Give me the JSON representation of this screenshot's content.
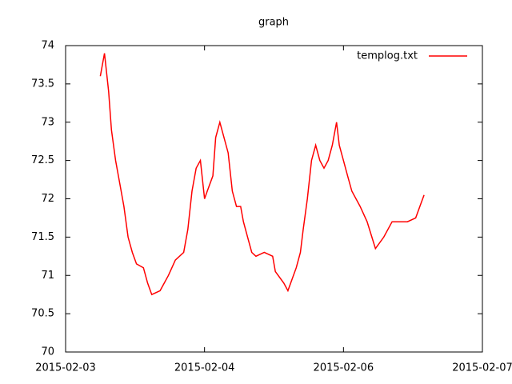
{
  "chart_data": {
    "type": "line",
    "title": "graph",
    "x": [
      0.25,
      0.28,
      0.31,
      0.33,
      0.36,
      0.39,
      0.42,
      0.45,
      0.48,
      0.51,
      0.56,
      0.59,
      0.62,
      0.68,
      0.74,
      0.79,
      0.85,
      0.88,
      0.91,
      0.94,
      0.97,
      1.0,
      1.02,
      1.06,
      1.08,
      1.11,
      1.14,
      1.17,
      1.2,
      1.23,
      1.26,
      1.28,
      1.31,
      1.34,
      1.37,
      1.43,
      1.49,
      1.51,
      1.57,
      1.6,
      1.63,
      1.66,
      1.69,
      1.71,
      1.74,
      1.77,
      1.8,
      1.83,
      1.86,
      1.89,
      1.92,
      1.95,
      1.97,
      2.0,
      2.03,
      2.06,
      2.12,
      2.17,
      2.23,
      2.29,
      2.35,
      2.41,
      2.46,
      2.52,
      2.55,
      2.58
    ],
    "series": [
      {
        "name": "templog.txt",
        "color": "#ff0000",
        "values": [
          73.6,
          73.9,
          73.4,
          72.9,
          72.5,
          72.2,
          71.9,
          71.5,
          71.3,
          71.15,
          71.1,
          70.9,
          70.75,
          70.8,
          71.0,
          71.2,
          71.3,
          71.6,
          72.1,
          72.4,
          72.5,
          72.0,
          72.1,
          72.3,
          72.8,
          73.0,
          72.8,
          72.6,
          72.1,
          71.9,
          71.9,
          71.7,
          71.5,
          71.3,
          71.25,
          71.3,
          71.25,
          71.05,
          70.9,
          70.8,
          70.95,
          71.1,
          71.3,
          71.6,
          72.0,
          72.5,
          72.7,
          72.5,
          72.4,
          72.5,
          72.7,
          73.0,
          72.7,
          72.5,
          72.3,
          72.1,
          71.9,
          71.7,
          71.35,
          71.5,
          71.7,
          71.7,
          71.7,
          71.75,
          71.9,
          72.05
        ]
      }
    ],
    "xlim": [
      0,
      3
    ],
    "xticks": [
      {
        "value": 0,
        "label": "2015-02-03"
      },
      {
        "value": 1,
        "label": "2015-02-04"
      },
      {
        "value": 2,
        "label": "2015-02-06"
      },
      {
        "value": 3,
        "label": "2015-02-07"
      }
    ],
    "ylim": [
      70,
      74
    ],
    "yticks": [
      70,
      70.5,
      71,
      71.5,
      72,
      72.5,
      73,
      73.5,
      74
    ],
    "legend": "top-right",
    "grid": false
  }
}
